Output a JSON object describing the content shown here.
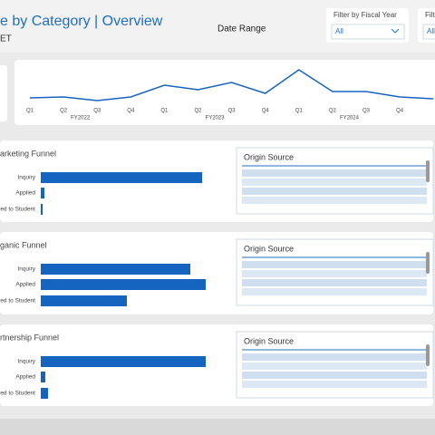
{
  "header": {
    "title": "e by Category | Overview",
    "subtitle": "ET",
    "date_range": "Date Range"
  },
  "filters": [
    {
      "label": "Filter by Fiscal Year",
      "value": "All"
    },
    {
      "label": "Filt",
      "value": "All"
    }
  ],
  "trend": {
    "type": "line",
    "color": "#1565c0",
    "x": [
      "Q1",
      "Q2",
      "Q3",
      "Q4",
      "Q1",
      "Q2",
      "Q3",
      "Q4",
      "Q1",
      "Q2",
      "Q3",
      "Q4",
      null
    ],
    "groups": [
      "FY2022",
      "FY2023",
      "FY2024"
    ],
    "values": [
      10,
      11,
      7,
      11,
      24,
      19,
      27,
      15,
      41,
      17,
      17,
      11,
      9
    ]
  },
  "funnels": [
    {
      "type": "bar",
      "title": "arketing Funnel",
      "categories": [
        "Inquiry",
        "Applied",
        "red to Student"
      ],
      "values": [
        178,
        4,
        2
      ],
      "color": "#1565c0",
      "origin_title": "Origin Source"
    },
    {
      "type": "bar",
      "title": "ganic Funnel",
      "categories": [
        "Inquiry",
        "Applied",
        "red to Student"
      ],
      "values": [
        165,
        182,
        95
      ],
      "color": "#1565c0",
      "origin_title": "Origin Source"
    },
    {
      "type": "bar",
      "title": "rtnership Funnel",
      "categories": [
        "Inquiry",
        "Applied",
        "red to Student"
      ],
      "values": [
        182,
        5,
        8
      ],
      "color": "#1565c0",
      "origin_title": "Origin Source"
    }
  ]
}
